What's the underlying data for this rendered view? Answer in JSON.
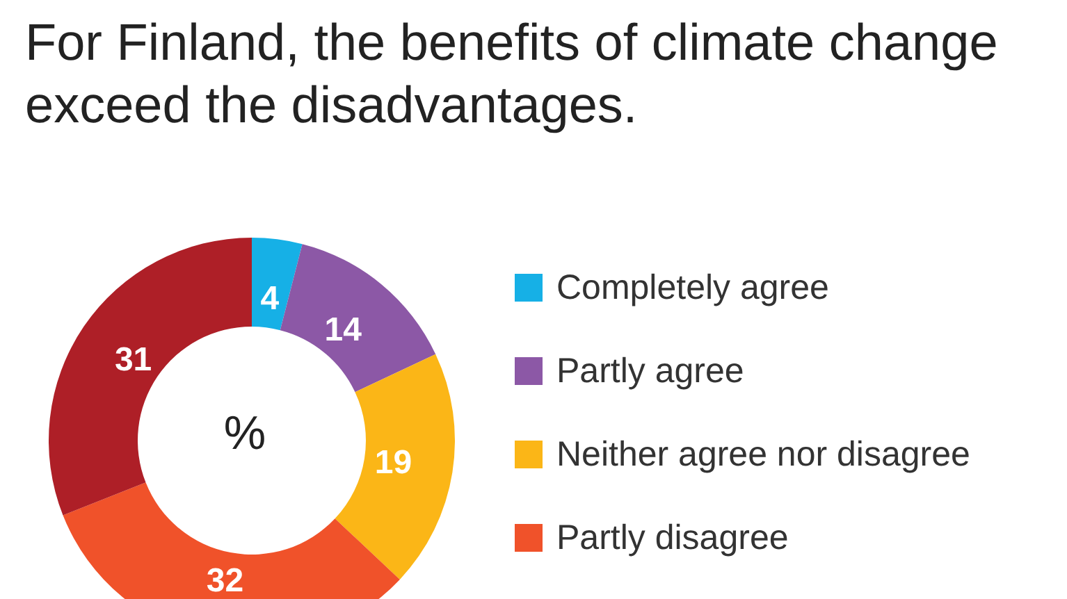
{
  "chart_data": {
    "type": "donut",
    "title": "For Finland, the benefits of climate change exceed the disadvantages.",
    "categories": [
      "Completely agree",
      "Partly agree",
      "Neither agree nor disagree",
      "Partly disagree",
      null
    ],
    "values": [
      4,
      14,
      19,
      32,
      31
    ],
    "colors": [
      "#16b0e6",
      "#8c58a6",
      "#fbb617",
      "#f0522a",
      "#ae1f27"
    ],
    "data_labels": true,
    "legend": "right",
    "annotations": [
      "%"
    ]
  }
}
